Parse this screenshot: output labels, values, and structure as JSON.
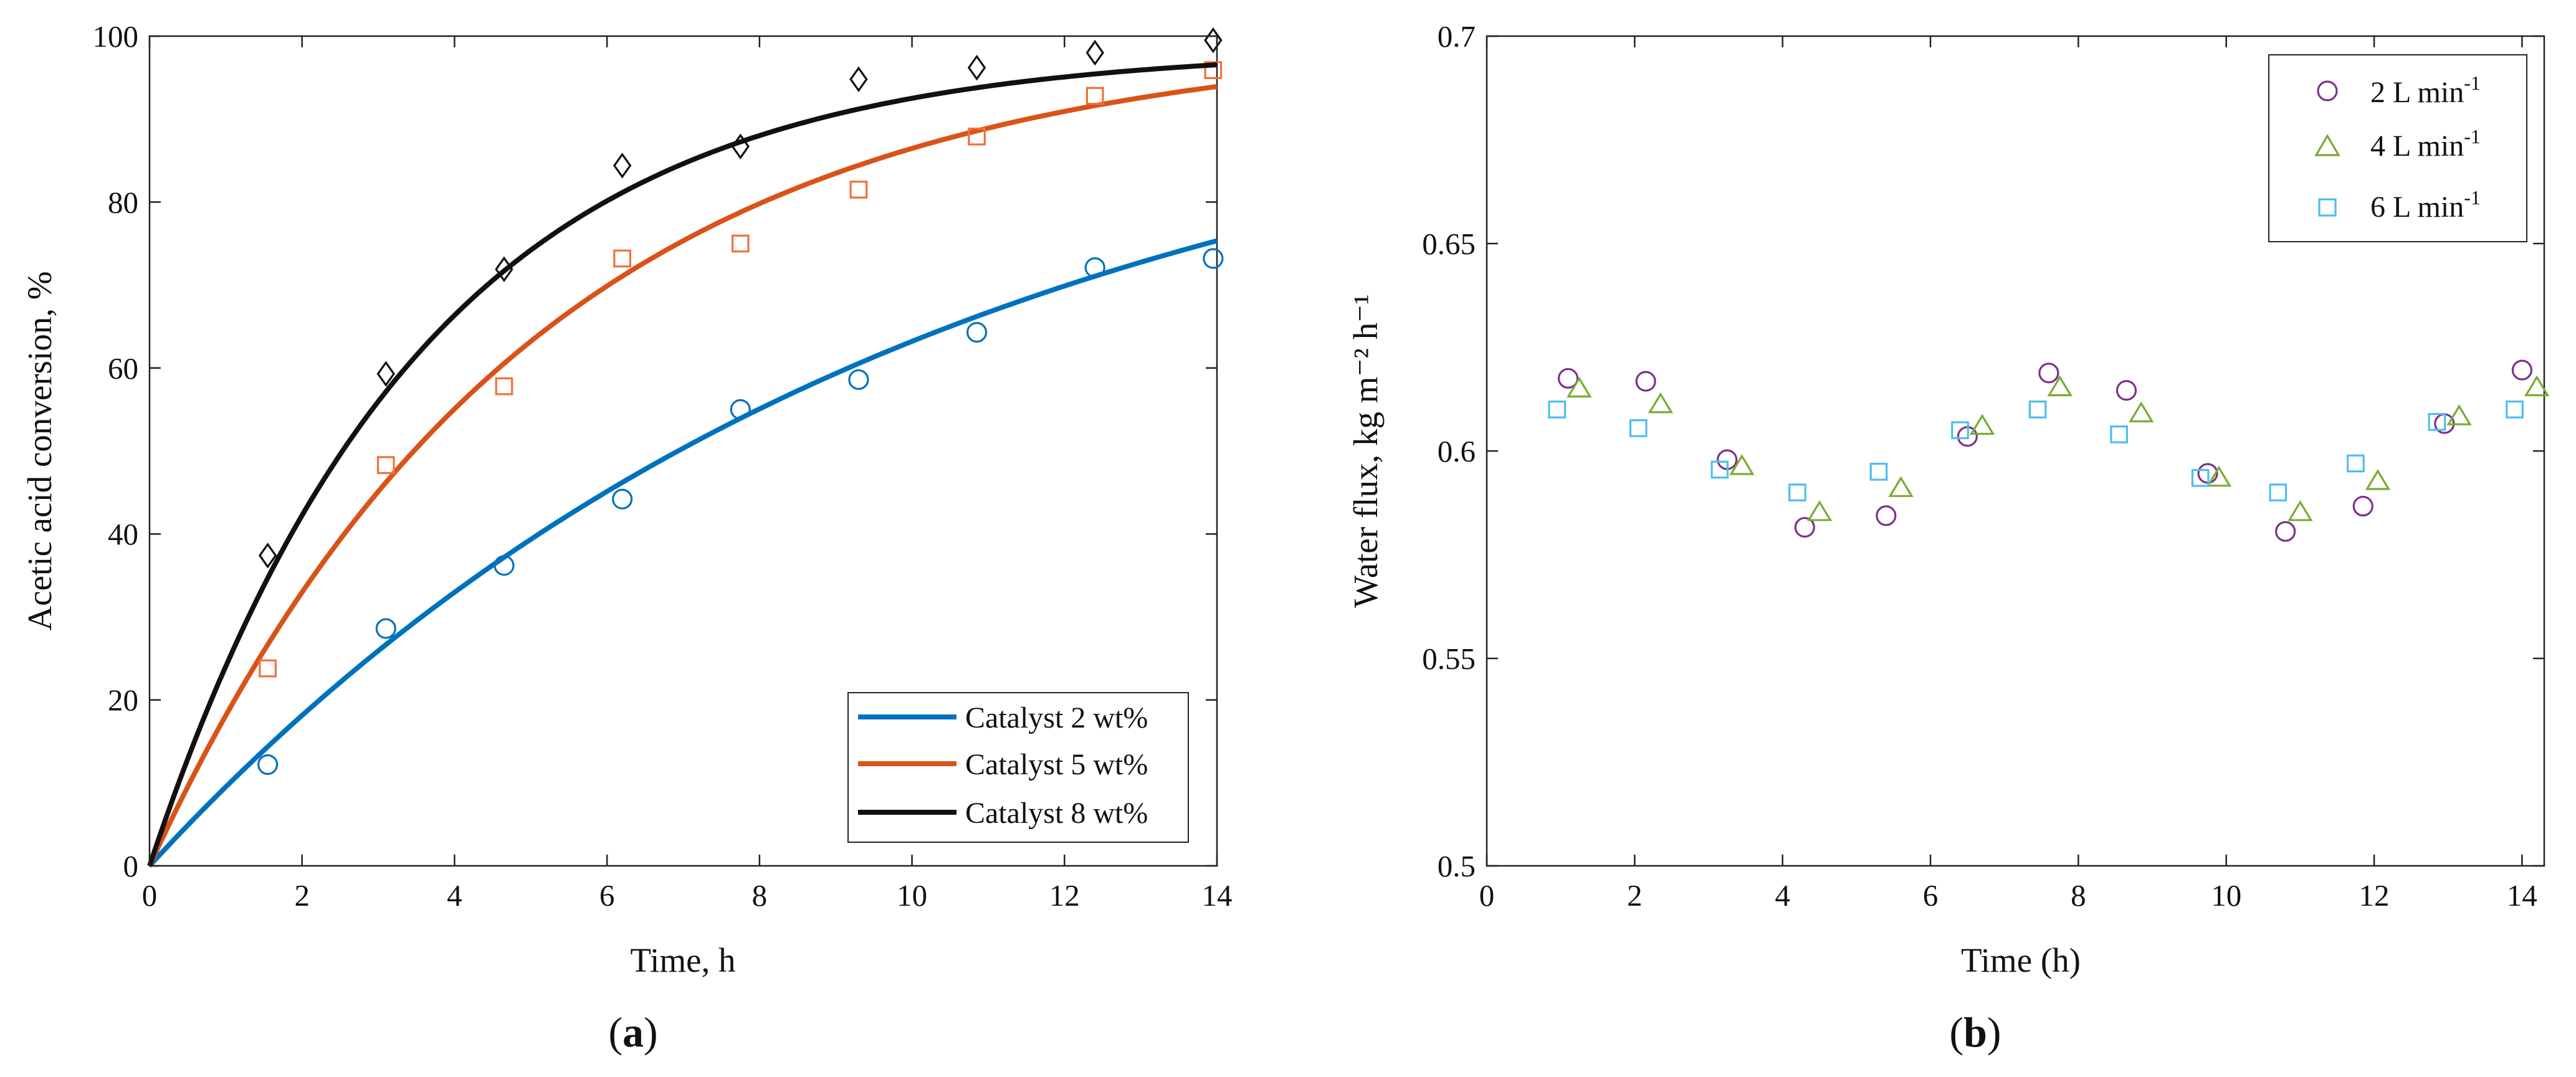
{
  "colors": {
    "cat2": "#0072BD",
    "cat5": "#D95319",
    "cat8": "#111111",
    "cat5_marker": "#F0703A",
    "flow2": "#7E2F8E",
    "flow4": "#77AC30",
    "flow6": "#4DBEEE"
  },
  "chart_data": [
    {
      "type": "line",
      "panel": "a",
      "panel_label": "a",
      "title": "",
      "xlabel": "Time, h",
      "ylabel": "Acetic acid conversion, %",
      "xlim": [
        0,
        14
      ],
      "ylim": [
        0,
        100
      ],
      "xticks": [
        0,
        2,
        4,
        6,
        8,
        10,
        12,
        14
      ],
      "yticks": [
        0,
        20,
        40,
        60,
        80,
        100
      ],
      "xtick_labels": [
        "0",
        "2",
        "4",
        "6",
        "8",
        "10",
        "12",
        "14"
      ],
      "ytick_labels": [
        "0",
        "20",
        "40",
        "60",
        "80",
        "100"
      ],
      "legend_position": "bottom-right",
      "series": [
        {
          "name": "Catalyst 2 wt%",
          "color_key": "cat2",
          "marker": "circle",
          "points": {
            "x": [
              1.55,
              3.1,
              4.65,
              6.2,
              7.75,
              9.3,
              10.85,
              12.4,
              13.95
            ],
            "y": [
              12.2,
              28.6,
              36.2,
              44.2,
              55.0,
              58.6,
              64.3,
              72.1,
              73.2
            ]
          },
          "fit": {
            "model": "first-order",
            "a": 100,
            "k": 0.1
          }
        },
        {
          "name": "Catalyst 5 wt%",
          "color_key": "cat5",
          "marker_color_key": "cat5_marker",
          "marker": "square",
          "points": {
            "x": [
              1.55,
              3.1,
              4.65,
              6.2,
              7.75,
              9.3,
              10.85,
              12.4,
              13.95
            ],
            "y": [
              23.8,
              48.3,
              57.8,
              73.2,
              75.0,
              81.5,
              87.9,
              92.8,
              95.9
            ]
          },
          "fit": {
            "model": "first-order",
            "a": 100,
            "k": 0.2
          }
        },
        {
          "name": "Catalyst 8 wt%",
          "color_key": "cat8",
          "marker": "diamond",
          "points": {
            "x": [
              1.55,
              3.1,
              4.65,
              6.2,
              7.75,
              9.3,
              10.85,
              12.4,
              13.95
            ],
            "y": [
              37.4,
              59.3,
              71.9,
              84.4,
              86.7,
              94.8,
              96.2,
              98.0,
              99.5
            ]
          },
          "fit": {
            "model": "first-order",
            "a": 98.5,
            "k": 0.28
          }
        }
      ]
    },
    {
      "type": "scatter",
      "panel": "b",
      "panel_label": "b",
      "title": "",
      "xlabel": "Time (h)",
      "ylabel": "Water flux, kg m⁻² h⁻¹",
      "xlim": [
        0,
        14.3
      ],
      "ylim": [
        0.5,
        0.7
      ],
      "xticks": [
        0,
        2,
        4,
        6,
        8,
        10,
        12,
        14
      ],
      "yticks": [
        0.5,
        0.55,
        0.6,
        0.65,
        0.7
      ],
      "xtick_labels": [
        "0",
        "2",
        "4",
        "6",
        "8",
        "10",
        "12",
        "14"
      ],
      "ytick_labels": [
        "0.5",
        "0.55",
        "0.6",
        "0.65",
        "0.7"
      ],
      "legend_position": "top-right",
      "series": [
        {
          "name": "2 L min-1",
          "legend_label": "2 L min",
          "legend_sup": "-1",
          "color_key": "flow2",
          "marker": "circle",
          "x": [
            1.1,
            2.15,
            3.25,
            4.3,
            5.4,
            6.5,
            7.6,
            8.65,
            9.75,
            10.8,
            11.85,
            12.95,
            14.0
          ],
          "y": [
            0.6175,
            0.6168,
            0.5979,
            0.5816,
            0.5844,
            0.6035,
            0.6188,
            0.6146,
            0.5946,
            0.5806,
            0.5867,
            0.6066,
            0.6195
          ]
        },
        {
          "name": "4 L min-1",
          "legend_label": "4 L min",
          "legend_sup": "-1",
          "color_key": "flow4",
          "marker": "triangle",
          "x": [
            1.25,
            2.35,
            3.45,
            4.5,
            5.6,
            6.7,
            7.75,
            8.85,
            9.9,
            11.0,
            12.05,
            13.15,
            14.2
          ],
          "y": [
            0.615,
            0.6112,
            0.5963,
            0.5852,
            0.591,
            0.606,
            0.6153,
            0.609,
            0.5935,
            0.5852,
            0.5927,
            0.6083,
            0.6153
          ]
        },
        {
          "name": "6 L min-1",
          "legend_label": "6 L min",
          "legend_sup": "-1",
          "color_key": "flow6",
          "marker": "square",
          "x": [
            0.95,
            2.05,
            3.15,
            4.2,
            5.3,
            6.4,
            7.45,
            8.55,
            9.65,
            10.7,
            11.75,
            12.85,
            13.9
          ],
          "y": [
            0.61,
            0.6055,
            0.5955,
            0.59,
            0.595,
            0.605,
            0.61,
            0.604,
            0.5935,
            0.59,
            0.597,
            0.607,
            0.61
          ]
        }
      ]
    }
  ]
}
